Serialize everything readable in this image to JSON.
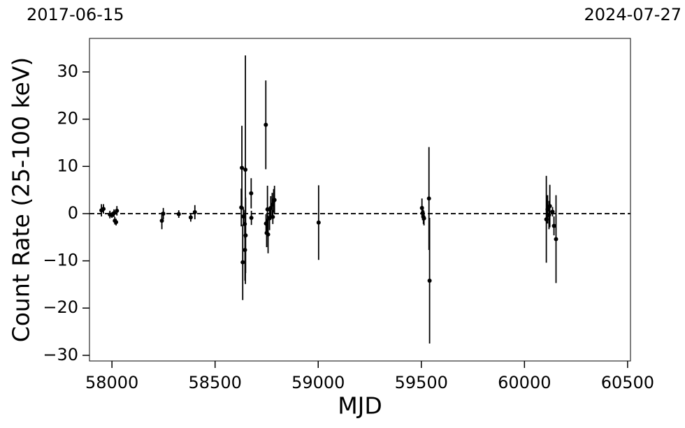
{
  "chart_data": {
    "type": "errorbar",
    "top_labels": [
      "2017-06-15",
      "2024-07-27"
    ],
    "xlabel": "MJD",
    "ylabel": "Count Rate (25-100 keV)",
    "xlim": [
      57891,
      60514
    ],
    "ylim": [
      -31.2,
      37.1
    ],
    "xticks": [
      58000,
      58500,
      59000,
      59500,
      60000,
      60500
    ],
    "yticks": [
      {
        "value": -30,
        "label": "−30"
      },
      {
        "value": -20,
        "label": "−20"
      },
      {
        "value": -10,
        "label": "−10"
      },
      0,
      10,
      20,
      30
    ],
    "hline": 0,
    "series": [
      {
        "color": "#000000",
        "x": [
          57949,
          57959,
          57990,
          58000,
          58010,
          58014,
          58020,
          58024,
          58242,
          58249,
          58324,
          58382,
          58402,
          58627,
          58630,
          58634,
          58637,
          58644,
          58647,
          58645,
          58648,
          58675,
          58676,
          58746,
          58747,
          58750,
          58754,
          58757,
          58764,
          58770,
          58777,
          58780,
          58784,
          58788,
          59002,
          59503,
          59506,
          59510,
          59513,
          59537,
          59540,
          60106,
          60112,
          60119,
          60123,
          60136,
          60143,
          60153
        ],
        "values": [
          0.7,
          1.0,
          -0.2,
          -0.3,
          0.1,
          -1.5,
          -1.8,
          0.6,
          -1.5,
          0.0,
          -0.1,
          -0.8,
          0.3,
          1.3,
          9.7,
          -10.3,
          -0.6,
          -2.2,
          9.3,
          -7.7,
          -4.6,
          4.3,
          -0.9,
          18.8,
          -2.1,
          -4.1,
          0.9,
          -4.4,
          -1.0,
          1.2,
          1.9,
          -0.7,
          2.7,
          2.9,
          -1.9,
          1.2,
          0.1,
          -0.7,
          -1.0,
          3.2,
          -14.2,
          -1.2,
          0.9,
          -0.3,
          1.6,
          0.4,
          -2.6,
          -5.4
        ],
        "errors": [
          1.3,
          1.0,
          0.8,
          0.6,
          0.8,
          0.8,
          0.7,
          1.0,
          1.8,
          1.2,
          0.8,
          0.9,
          1.5,
          4.0,
          8.9,
          8.0,
          2.0,
          3.0,
          24.2,
          6.5,
          8.0,
          3.2,
          1.5,
          9.4,
          2.0,
          3.0,
          5.0,
          4.0,
          2.5,
          2.5,
          2.5,
          1.5,
          2.5,
          3.0,
          7.9,
          2.0,
          1.5,
          1.5,
          1.5,
          10.9,
          13.3,
          9.2,
          3.0,
          3.0,
          4.5,
          1.0,
          2.0,
          9.3
        ]
      }
    ]
  }
}
